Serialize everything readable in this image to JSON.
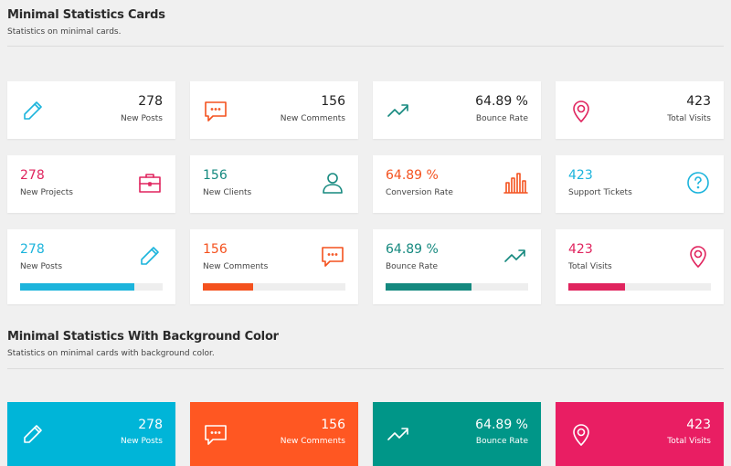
{
  "section1": {
    "title": "Minimal Statistics Cards",
    "subtitle": "Statistics on minimal cards."
  },
  "section2": {
    "title": "Minimal Statistics With Background Color",
    "subtitle": "Statistics on minimal cards with background color."
  },
  "colors": {
    "blue": "#1cb4dc",
    "orange": "#f4511e",
    "teal": "#15897f",
    "pink": "#e0245e"
  },
  "row1": [
    {
      "value": "278",
      "label": "New Posts",
      "icon": "pencil-icon",
      "color": "#1cb4dc"
    },
    {
      "value": "156",
      "label": "New Comments",
      "icon": "comment-icon",
      "color": "#f4511e"
    },
    {
      "value": "64.89 %",
      "label": "Bounce Rate",
      "icon": "trending-up-icon",
      "color": "#15897f"
    },
    {
      "value": "423",
      "label": "Total Visits",
      "icon": "map-pin-icon",
      "color": "#e0245e"
    }
  ],
  "row2": [
    {
      "value": "278",
      "label": "New Projects",
      "icon": "briefcase-icon",
      "color": "#e0245e"
    },
    {
      "value": "156",
      "label": "New Clients",
      "icon": "user-icon",
      "color": "#15897f"
    },
    {
      "value": "64.89 %",
      "label": "Conversion Rate",
      "icon": "bar-chart-icon",
      "color": "#f4511e"
    },
    {
      "value": "423",
      "label": "Support Tickets",
      "icon": "help-circle-icon",
      "color": "#1cb4dc"
    }
  ],
  "row3": [
    {
      "value": "278",
      "label": "New Posts",
      "icon": "pencil-icon",
      "color": "#1cb4dc",
      "progress": 80
    },
    {
      "value": "156",
      "label": "New Comments",
      "icon": "comment-icon",
      "color": "#f4511e",
      "progress": 35
    },
    {
      "value": "64.89 %",
      "label": "Bounce Rate",
      "icon": "trending-up-icon",
      "color": "#15897f",
      "progress": 60
    },
    {
      "value": "423",
      "label": "Total Visits",
      "icon": "map-pin-icon",
      "color": "#e0245e",
      "progress": 40
    }
  ],
  "row4": [
    {
      "value": "278",
      "label": "New Posts",
      "icon": "pencil-icon",
      "color": "#00b5d8"
    },
    {
      "value": "156",
      "label": "New Comments",
      "icon": "comment-icon",
      "color": "#ff5722"
    },
    {
      "value": "64.89 %",
      "label": "Bounce Rate",
      "icon": "trending-up-icon",
      "color": "#009688"
    },
    {
      "value": "423",
      "label": "Total Visits",
      "icon": "map-pin-icon",
      "color": "#e91e63"
    }
  ]
}
